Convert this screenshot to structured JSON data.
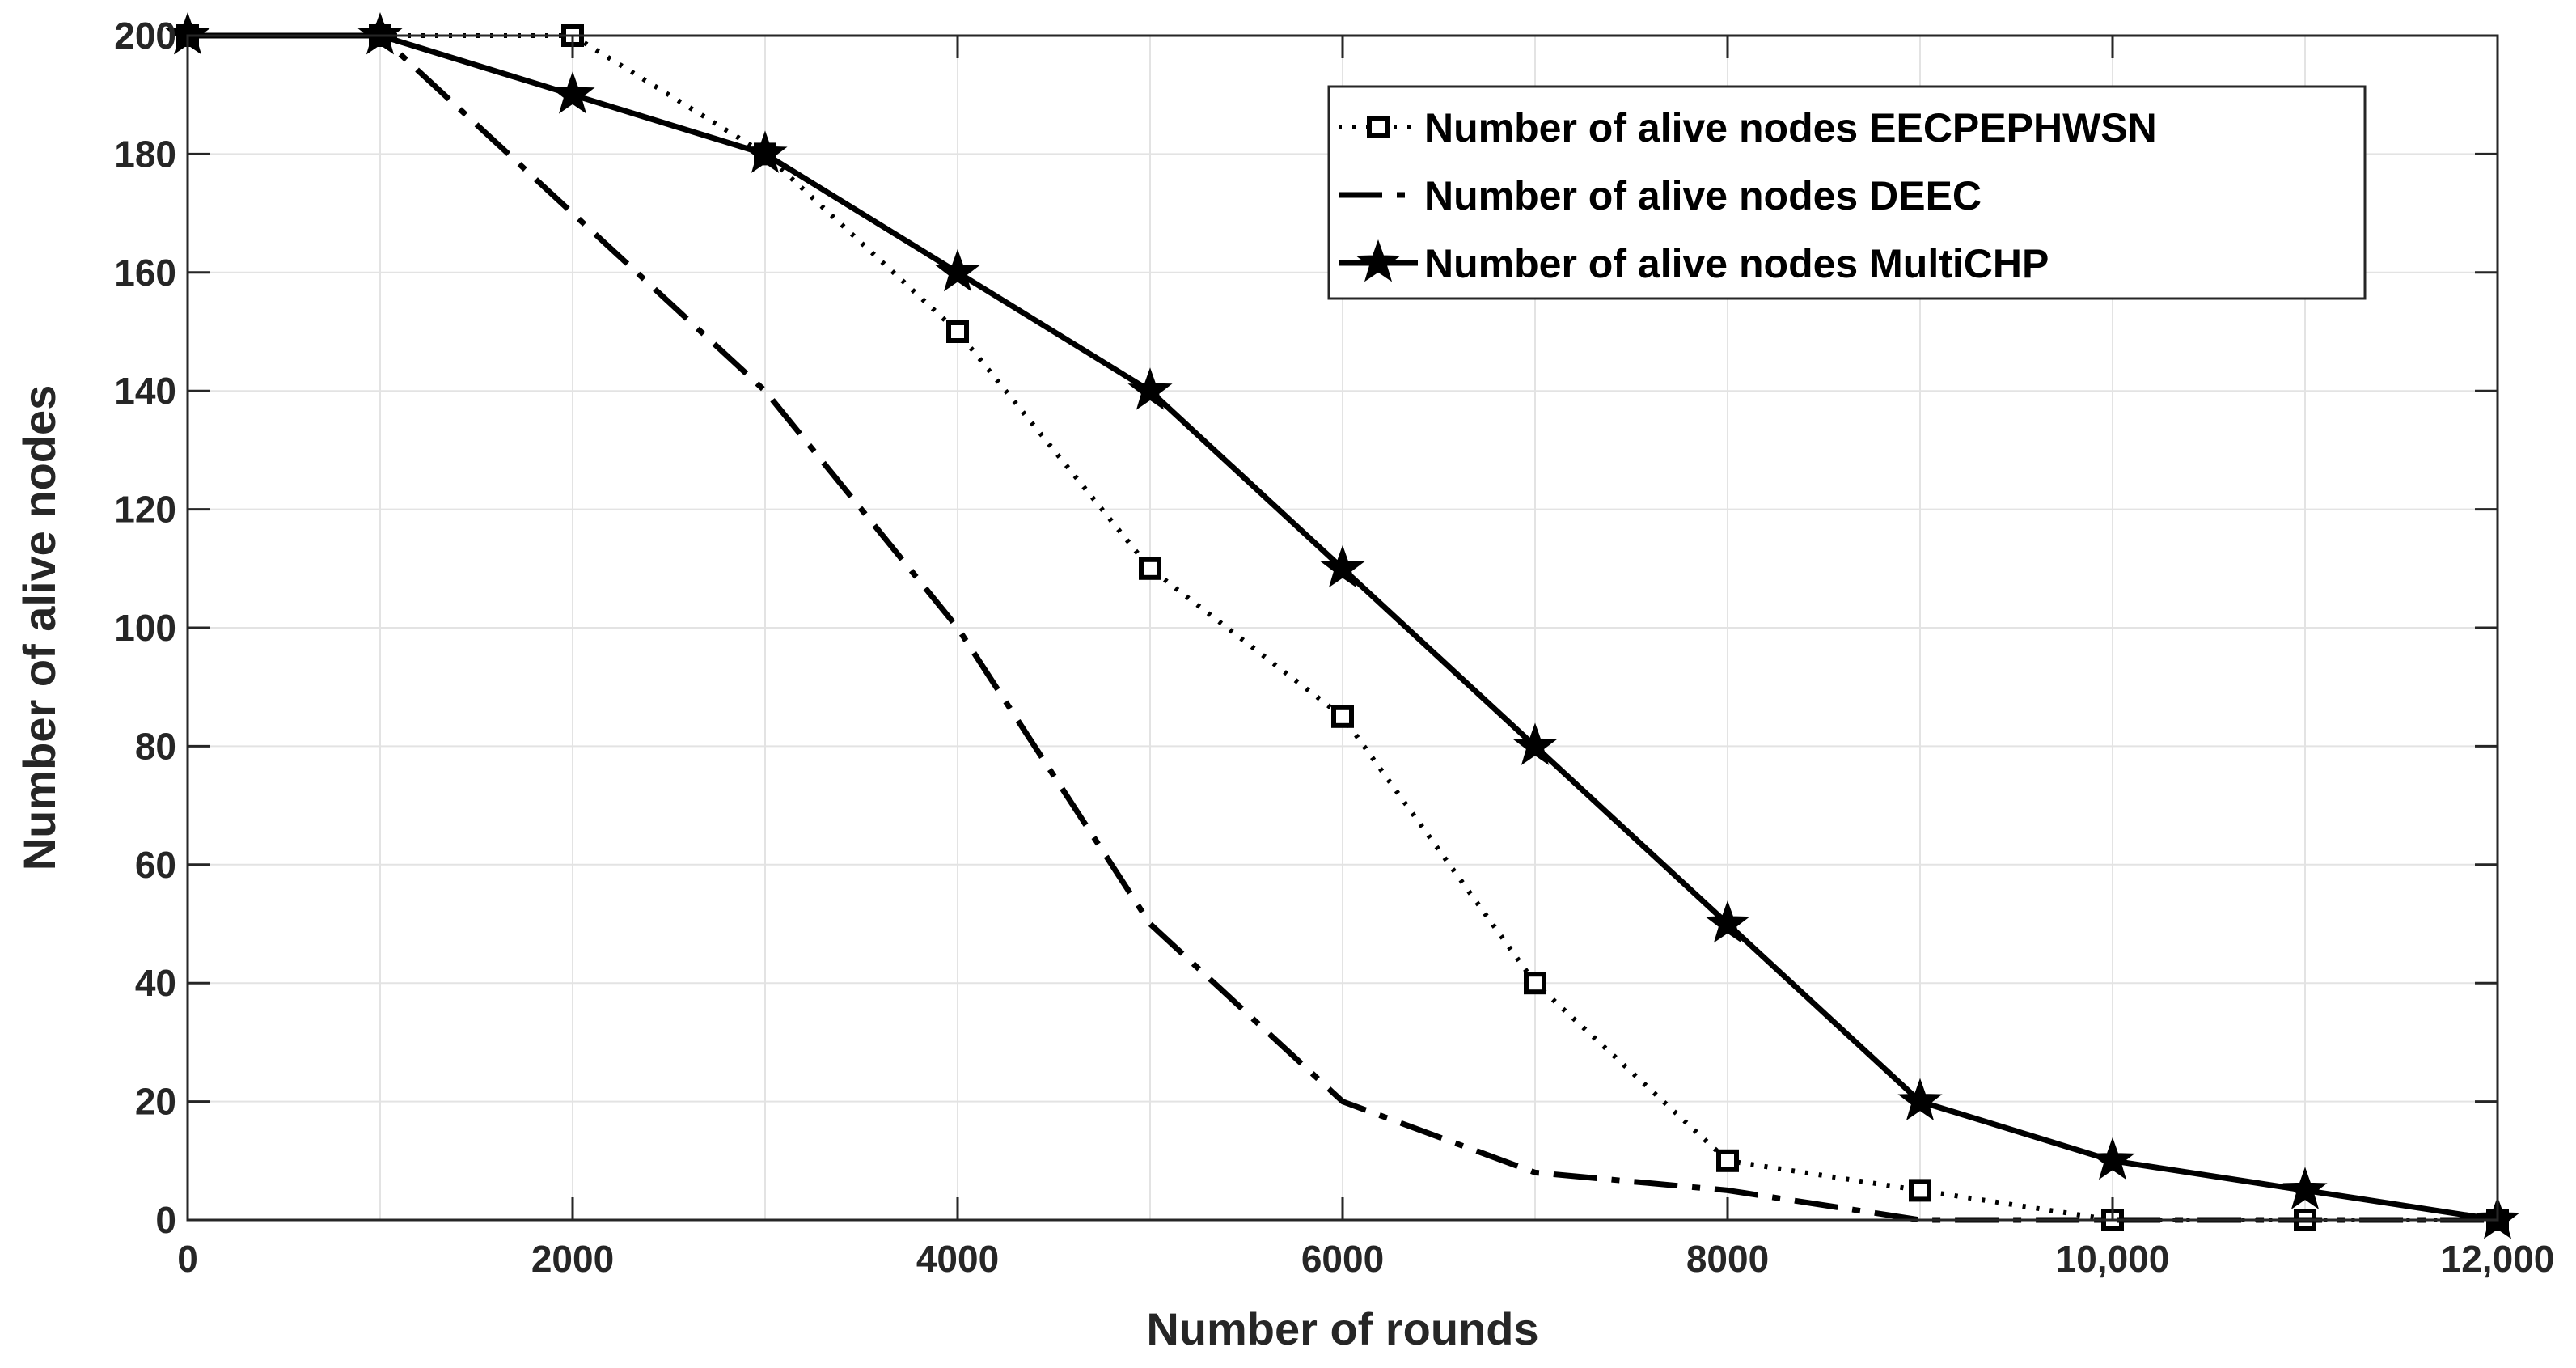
{
  "chart_data": {
    "type": "line",
    "title": "",
    "xlabel": "Number of rounds",
    "ylabel": "Number of alive nodes",
    "xlim": [
      0,
      12000
    ],
    "ylim": [
      0,
      200
    ],
    "xticks": [
      0,
      2000,
      4000,
      6000,
      8000,
      10000,
      12000
    ],
    "xtick_labels": [
      "0",
      "2000",
      "4000",
      "6000",
      "8000",
      "10,000",
      "12,000"
    ],
    "yticks": [
      0,
      20,
      40,
      60,
      80,
      100,
      120,
      140,
      160,
      180,
      200
    ],
    "ytick_labels": [
      "0",
      "20",
      "40",
      "60",
      "80",
      "100",
      "120",
      "140",
      "160",
      "180",
      "200"
    ],
    "grid": true,
    "legend_position": "top-right",
    "x": [
      0,
      1000,
      2000,
      3000,
      4000,
      5000,
      6000,
      7000,
      8000,
      9000,
      10000,
      11000,
      12000
    ],
    "series": [
      {
        "name": "Number of alive nodes EECPEPHWSN",
        "line_style": "dotted",
        "marker": "square",
        "color": "#000000",
        "values": [
          200,
          200,
          200,
          180,
          150,
          110,
          85,
          40,
          10,
          5,
          0,
          0,
          0
        ]
      },
      {
        "name": "Number of alive nodes DEEC",
        "line_style": "dash-dot",
        "marker": "none",
        "color": "#000000",
        "values": [
          200,
          200,
          170,
          140,
          100,
          50,
          20,
          8,
          5,
          0,
          0,
          0,
          0
        ]
      },
      {
        "name": "Number of alive nodes MultiCHP",
        "line_style": "solid",
        "marker": "star",
        "color": "#000000",
        "values": [
          200,
          200,
          190,
          180,
          160,
          140,
          110,
          80,
          50,
          20,
          10,
          5,
          0
        ]
      }
    ]
  }
}
